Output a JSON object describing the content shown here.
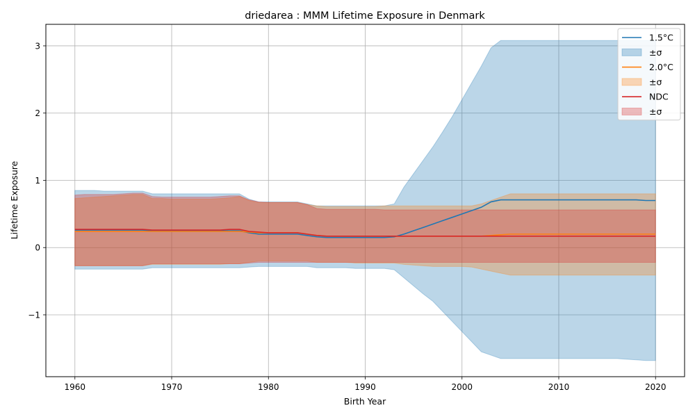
{
  "chart_data": {
    "type": "area",
    "title": "driedarea : MMM Lifetime Exposure in Denmark",
    "xlabel": "Birth Year",
    "ylabel": "Lifetime Exposure",
    "xlim": [
      1957,
      2023
    ],
    "ylim": [
      -1.92,
      3.32
    ],
    "xticks": [
      1960,
      1970,
      1980,
      1990,
      2000,
      2010,
      2020
    ],
    "yticks": [
      -1,
      0,
      1,
      2,
      3
    ],
    "ytick_labels": [
      "−1",
      "0",
      "1",
      "2",
      "3"
    ],
    "grid": true,
    "legend_position": "top-right",
    "x": [
      1960,
      1961,
      1962,
      1963,
      1964,
      1965,
      1966,
      1967,
      1968,
      1969,
      1970,
      1971,
      1972,
      1973,
      1974,
      1975,
      1976,
      1977,
      1978,
      1979,
      1980,
      1981,
      1982,
      1983,
      1984,
      1985,
      1986,
      1987,
      1988,
      1989,
      1990,
      1991,
      1992,
      1993,
      1994,
      1995,
      1996,
      1997,
      1998,
      1999,
      2000,
      2001,
      2002,
      2003,
      2004,
      2005,
      2006,
      2007,
      2008,
      2009,
      2010,
      2011,
      2012,
      2013,
      2014,
      2015,
      2016,
      2017,
      2018,
      2019,
      2020
    ],
    "series": [
      {
        "name": "1.5°C",
        "band_name": "±σ",
        "color": "#1f77b4",
        "mean": [
          0.26,
          0.26,
          0.26,
          0.26,
          0.26,
          0.26,
          0.26,
          0.26,
          0.25,
          0.25,
          0.25,
          0.25,
          0.25,
          0.25,
          0.25,
          0.25,
          0.25,
          0.25,
          0.22,
          0.2,
          0.2,
          0.2,
          0.2,
          0.2,
          0.18,
          0.16,
          0.15,
          0.15,
          0.15,
          0.15,
          0.15,
          0.15,
          0.15,
          0.16,
          0.2,
          0.25,
          0.3,
          0.35,
          0.4,
          0.45,
          0.5,
          0.55,
          0.6,
          0.68,
          0.71,
          0.71,
          0.71,
          0.71,
          0.71,
          0.71,
          0.71,
          0.71,
          0.71,
          0.71,
          0.71,
          0.71,
          0.71,
          0.71,
          0.71,
          0.7,
          0.7
        ],
        "upper": [
          0.85,
          0.85,
          0.85,
          0.84,
          0.84,
          0.84,
          0.84,
          0.84,
          0.8,
          0.8,
          0.8,
          0.8,
          0.8,
          0.8,
          0.8,
          0.8,
          0.8,
          0.8,
          0.72,
          0.68,
          0.68,
          0.68,
          0.68,
          0.68,
          0.65,
          0.62,
          0.62,
          0.62,
          0.62,
          0.62,
          0.62,
          0.62,
          0.62,
          0.65,
          0.9,
          1.1,
          1.3,
          1.5,
          1.72,
          1.95,
          2.2,
          2.45,
          2.7,
          2.97,
          3.08,
          3.08,
          3.08,
          3.08,
          3.08,
          3.08,
          3.08,
          3.08,
          3.08,
          3.08,
          3.08,
          3.08,
          3.08,
          3.08,
          3.08,
          3.08,
          3.08
        ],
        "lower": [
          -0.32,
          -0.32,
          -0.32,
          -0.32,
          -0.32,
          -0.32,
          -0.32,
          -0.32,
          -0.3,
          -0.3,
          -0.3,
          -0.3,
          -0.3,
          -0.3,
          -0.3,
          -0.3,
          -0.3,
          -0.3,
          -0.29,
          -0.28,
          -0.28,
          -0.28,
          -0.28,
          -0.28,
          -0.28,
          -0.3,
          -0.3,
          -0.3,
          -0.3,
          -0.31,
          -0.31,
          -0.31,
          -0.31,
          -0.33,
          -0.45,
          -0.57,
          -0.69,
          -0.8,
          -0.95,
          -1.1,
          -1.25,
          -1.4,
          -1.55,
          -1.6,
          -1.65,
          -1.65,
          -1.65,
          -1.65,
          -1.65,
          -1.65,
          -1.65,
          -1.65,
          -1.65,
          -1.65,
          -1.65,
          -1.65,
          -1.65,
          -1.66,
          -1.67,
          -1.68,
          -1.68
        ]
      },
      {
        "name": "2.0°C",
        "band_name": "±σ",
        "color": "#ff7f0e",
        "mean": [
          0.24,
          0.24,
          0.24,
          0.24,
          0.24,
          0.24,
          0.24,
          0.24,
          0.24,
          0.24,
          0.24,
          0.24,
          0.24,
          0.24,
          0.24,
          0.24,
          0.24,
          0.24,
          0.23,
          0.22,
          0.22,
          0.22,
          0.22,
          0.22,
          0.2,
          0.18,
          0.17,
          0.17,
          0.17,
          0.17,
          0.17,
          0.17,
          0.17,
          0.17,
          0.17,
          0.17,
          0.17,
          0.17,
          0.17,
          0.17,
          0.17,
          0.17,
          0.17,
          0.18,
          0.19,
          0.2,
          0.2,
          0.2,
          0.2,
          0.2,
          0.2,
          0.2,
          0.2,
          0.2,
          0.2,
          0.2,
          0.2,
          0.2,
          0.2,
          0.2,
          0.2
        ],
        "upper": [
          0.73,
          0.74,
          0.75,
          0.76,
          0.77,
          0.78,
          0.79,
          0.79,
          0.73,
          0.73,
          0.72,
          0.72,
          0.72,
          0.72,
          0.72,
          0.73,
          0.74,
          0.76,
          0.7,
          0.67,
          0.67,
          0.67,
          0.67,
          0.67,
          0.64,
          0.62,
          0.61,
          0.61,
          0.61,
          0.61,
          0.61,
          0.61,
          0.62,
          0.62,
          0.62,
          0.62,
          0.62,
          0.62,
          0.62,
          0.62,
          0.62,
          0.62,
          0.65,
          0.7,
          0.75,
          0.8,
          0.8,
          0.8,
          0.8,
          0.8,
          0.8,
          0.8,
          0.8,
          0.8,
          0.8,
          0.8,
          0.8,
          0.8,
          0.8,
          0.8,
          0.8
        ],
        "lower": [
          -0.27,
          -0.27,
          -0.27,
          -0.27,
          -0.27,
          -0.27,
          -0.27,
          -0.27,
          -0.25,
          -0.25,
          -0.25,
          -0.25,
          -0.25,
          -0.25,
          -0.25,
          -0.25,
          -0.24,
          -0.24,
          -0.22,
          -0.2,
          -0.2,
          -0.2,
          -0.2,
          -0.2,
          -0.2,
          -0.22,
          -0.22,
          -0.22,
          -0.22,
          -0.23,
          -0.23,
          -0.23,
          -0.23,
          -0.23,
          -0.25,
          -0.26,
          -0.27,
          -0.28,
          -0.28,
          -0.28,
          -0.28,
          -0.29,
          -0.32,
          -0.35,
          -0.38,
          -0.41,
          -0.41,
          -0.41,
          -0.41,
          -0.41,
          -0.41,
          -0.41,
          -0.41,
          -0.41,
          -0.41,
          -0.41,
          -0.41,
          -0.41,
          -0.41,
          -0.41,
          -0.41
        ]
      },
      {
        "name": "NDC",
        "band_name": "±σ",
        "color": "#d62728",
        "mean": [
          0.27,
          0.27,
          0.27,
          0.27,
          0.27,
          0.27,
          0.27,
          0.27,
          0.26,
          0.26,
          0.26,
          0.26,
          0.26,
          0.26,
          0.26,
          0.26,
          0.27,
          0.27,
          0.24,
          0.23,
          0.22,
          0.22,
          0.22,
          0.22,
          0.2,
          0.18,
          0.17,
          0.17,
          0.17,
          0.17,
          0.17,
          0.17,
          0.17,
          0.17,
          0.17,
          0.17,
          0.17,
          0.17,
          0.17,
          0.17,
          0.17,
          0.17,
          0.17,
          0.17,
          0.17,
          0.17,
          0.17,
          0.17,
          0.17,
          0.17,
          0.17,
          0.17,
          0.17,
          0.17,
          0.17,
          0.17,
          0.17,
          0.17,
          0.17,
          0.17,
          0.17
        ],
        "upper": [
          0.78,
          0.79,
          0.79,
          0.79,
          0.79,
          0.8,
          0.81,
          0.81,
          0.76,
          0.75,
          0.75,
          0.75,
          0.75,
          0.75,
          0.75,
          0.76,
          0.77,
          0.77,
          0.71,
          0.68,
          0.67,
          0.67,
          0.67,
          0.67,
          0.64,
          0.58,
          0.57,
          0.57,
          0.57,
          0.57,
          0.57,
          0.57,
          0.56,
          0.56,
          0.56,
          0.56,
          0.56,
          0.56,
          0.56,
          0.56,
          0.56,
          0.56,
          0.56,
          0.56,
          0.56,
          0.56,
          0.56,
          0.56,
          0.56,
          0.56,
          0.56,
          0.56,
          0.56,
          0.56,
          0.56,
          0.56,
          0.56,
          0.56,
          0.56,
          0.56,
          0.56
        ],
        "lower": [
          -0.27,
          -0.27,
          -0.27,
          -0.27,
          -0.27,
          -0.27,
          -0.27,
          -0.27,
          -0.24,
          -0.24,
          -0.24,
          -0.24,
          -0.24,
          -0.24,
          -0.24,
          -0.24,
          -0.24,
          -0.24,
          -0.23,
          -0.22,
          -0.22,
          -0.22,
          -0.22,
          -0.22,
          -0.22,
          -0.22,
          -0.22,
          -0.22,
          -0.22,
          -0.22,
          -0.22,
          -0.22,
          -0.22,
          -0.22,
          -0.22,
          -0.22,
          -0.22,
          -0.22,
          -0.22,
          -0.22,
          -0.22,
          -0.22,
          -0.22,
          -0.22,
          -0.22,
          -0.22,
          -0.22,
          -0.22,
          -0.22,
          -0.22,
          -0.22,
          -0.22,
          -0.22,
          -0.22,
          -0.22,
          -0.22,
          -0.22,
          -0.22,
          -0.22,
          -0.22,
          -0.22
        ]
      }
    ]
  }
}
